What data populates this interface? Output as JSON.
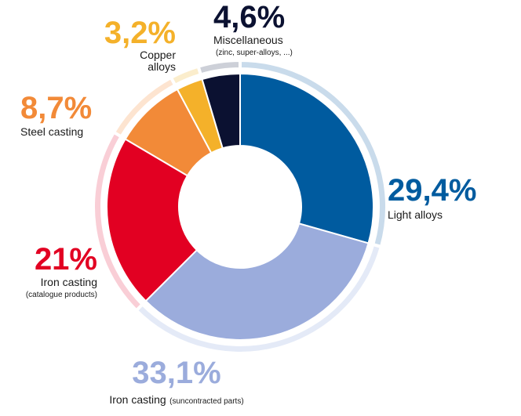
{
  "chart_data": {
    "type": "pie",
    "variant": "donut",
    "slices": [
      {
        "label": "Light alloys",
        "sublabel": "",
        "value": 29.4,
        "value_text": "29,4%",
        "color": "#005b9f",
        "halo": "#c9dbeb"
      },
      {
        "label": "Iron casting",
        "sublabel": "(suncontracted parts)",
        "value": 33.1,
        "value_text": "33,1%",
        "color": "#9bacdc",
        "halo": "#e4eaf7"
      },
      {
        "label": "Iron casting",
        "sublabel": "(catalogue products)",
        "value": 21,
        "value_text": "21%",
        "color": "#e20022",
        "halo": "#f9ced6"
      },
      {
        "label": "Steel casting",
        "sublabel": "",
        "value": 8.7,
        "value_text": "8,7%",
        "color": "#f28a38",
        "halo": "#fde4d0"
      },
      {
        "label": "Copper alloys",
        "sublabel": "",
        "value": 3.2,
        "value_text": "3,2%",
        "color": "#f4b12a",
        "halo": "#fbedcc"
      },
      {
        "label": "Miscellaneous",
        "sublabel": "(zinc, super-alloys, ...)",
        "value": 4.6,
        "value_text": "4,6%",
        "color": "#0b1131",
        "halo": "#cdd0d8"
      }
    ],
    "label_text": {
      "light_alloys": {
        "pct": "29,4%",
        "name": "Light alloys"
      },
      "iron_sub": {
        "pct": "33,1%",
        "name": "Iron casting",
        "sub": "(suncontracted parts)"
      },
      "iron_cat": {
        "pct": "21%",
        "name": "Iron casting",
        "sub": "(catalogue products)"
      },
      "steel": {
        "pct": "8,7%",
        "name": "Steel casting"
      },
      "copper": {
        "pct": "3,2%",
        "name_line1": "Copper",
        "name_line2": "alloys"
      },
      "misc": {
        "pct": "4,6%",
        "name": "Miscellaneous",
        "sub": "(zinc, super-alloys, ...)"
      }
    }
  }
}
